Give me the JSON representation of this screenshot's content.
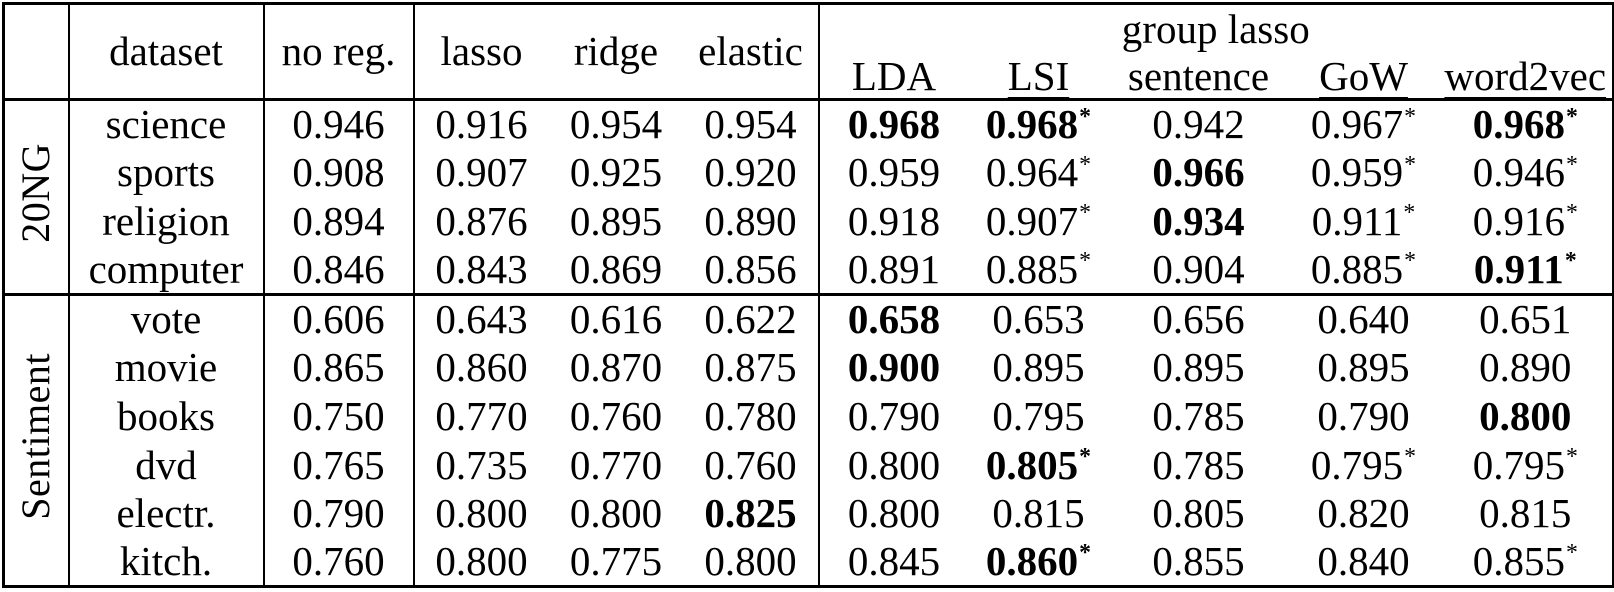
{
  "table": {
    "headers": {
      "corner": "",
      "dataset": "dataset",
      "no_reg": "no reg.",
      "lasso": "lasso",
      "ridge": "ridge",
      "elastic": "elastic",
      "group_lasso": "group lasso",
      "sub": [
        {
          "label": "LDA",
          "underlined": false
        },
        {
          "label": "LSI",
          "underlined": true
        },
        {
          "label": "sentence",
          "underlined": false
        },
        {
          "label": "GoW",
          "underlined": true
        },
        {
          "label": "word2vec",
          "underlined": true
        }
      ]
    },
    "value_columns": [
      "no reg.",
      "lasso",
      "ridge",
      "elastic",
      "LDA",
      "LSI",
      "sentence",
      "GoW",
      "word2vec"
    ],
    "groups": [
      {
        "label": "20NG",
        "rows": [
          {
            "dataset": "science",
            "values": [
              {
                "text": "0.946"
              },
              {
                "text": "0.916"
              },
              {
                "text": "0.954"
              },
              {
                "text": "0.954"
              },
              {
                "text": "0.968",
                "bold": true
              },
              {
                "text": "0.968",
                "bold": true,
                "star": true
              },
              {
                "text": "0.942"
              },
              {
                "text": "0.967",
                "star": true
              },
              {
                "text": "0.968",
                "bold": true,
                "star": true
              }
            ]
          },
          {
            "dataset": "sports",
            "values": [
              {
                "text": "0.908"
              },
              {
                "text": "0.907"
              },
              {
                "text": "0.925"
              },
              {
                "text": "0.920"
              },
              {
                "text": "0.959"
              },
              {
                "text": "0.964",
                "star": true
              },
              {
                "text": "0.966",
                "bold": true
              },
              {
                "text": "0.959",
                "star": true
              },
              {
                "text": "0.946",
                "star": true
              }
            ]
          },
          {
            "dataset": "religion",
            "values": [
              {
                "text": "0.894"
              },
              {
                "text": "0.876"
              },
              {
                "text": "0.895"
              },
              {
                "text": "0.890"
              },
              {
                "text": "0.918"
              },
              {
                "text": "0.907",
                "star": true
              },
              {
                "text": "0.934",
                "bold": true
              },
              {
                "text": "0.911",
                "star": true
              },
              {
                "text": "0.916",
                "star": true
              }
            ]
          },
          {
            "dataset": "computer",
            "values": [
              {
                "text": "0.846"
              },
              {
                "text": "0.843"
              },
              {
                "text": "0.869"
              },
              {
                "text": "0.856"
              },
              {
                "text": "0.891"
              },
              {
                "text": "0.885",
                "star": true
              },
              {
                "text": "0.904"
              },
              {
                "text": "0.885",
                "star": true
              },
              {
                "text": "0.911",
                "bold": true,
                "star": true
              }
            ]
          }
        ]
      },
      {
        "label": "Sentiment",
        "rows": [
          {
            "dataset": "vote",
            "values": [
              {
                "text": "0.606"
              },
              {
                "text": "0.643"
              },
              {
                "text": "0.616"
              },
              {
                "text": "0.622"
              },
              {
                "text": "0.658",
                "bold": true
              },
              {
                "text": "0.653"
              },
              {
                "text": "0.656"
              },
              {
                "text": "0.640"
              },
              {
                "text": "0.651"
              }
            ]
          },
          {
            "dataset": "movie",
            "values": [
              {
                "text": "0.865"
              },
              {
                "text": "0.860"
              },
              {
                "text": "0.870"
              },
              {
                "text": "0.875"
              },
              {
                "text": "0.900",
                "bold": true
              },
              {
                "text": "0.895"
              },
              {
                "text": "0.895"
              },
              {
                "text": "0.895"
              },
              {
                "text": "0.890"
              }
            ]
          },
          {
            "dataset": "books",
            "values": [
              {
                "text": "0.750"
              },
              {
                "text": "0.770"
              },
              {
                "text": "0.760"
              },
              {
                "text": "0.780"
              },
              {
                "text": "0.790"
              },
              {
                "text": "0.795"
              },
              {
                "text": "0.785"
              },
              {
                "text": "0.790"
              },
              {
                "text": "0.800",
                "bold": true
              }
            ]
          },
          {
            "dataset": "dvd",
            "values": [
              {
                "text": "0.765"
              },
              {
                "text": "0.735"
              },
              {
                "text": "0.770"
              },
              {
                "text": "0.760"
              },
              {
                "text": "0.800"
              },
              {
                "text": "0.805",
                "bold": true,
                "star": true
              },
              {
                "text": "0.785"
              },
              {
                "text": "0.795",
                "star": true
              },
              {
                "text": "0.795",
                "star": true
              }
            ]
          },
          {
            "dataset": "electr.",
            "values": [
              {
                "text": "0.790"
              },
              {
                "text": "0.800"
              },
              {
                "text": "0.800"
              },
              {
                "text": "0.825",
                "bold": true
              },
              {
                "text": "0.800"
              },
              {
                "text": "0.815"
              },
              {
                "text": "0.805"
              },
              {
                "text": "0.820"
              },
              {
                "text": "0.815"
              }
            ]
          },
          {
            "dataset": "kitch.",
            "values": [
              {
                "text": "0.760"
              },
              {
                "text": "0.800"
              },
              {
                "text": "0.775"
              },
              {
                "text": "0.800"
              },
              {
                "text": "0.845"
              },
              {
                "text": "0.860",
                "bold": true,
                "star": true
              },
              {
                "text": "0.855"
              },
              {
                "text": "0.840"
              },
              {
                "text": "0.855",
                "star": true
              }
            ]
          }
        ]
      }
    ],
    "colors": {
      "border": "#000000",
      "background": "#ffffff",
      "text": "#000000"
    }
  }
}
